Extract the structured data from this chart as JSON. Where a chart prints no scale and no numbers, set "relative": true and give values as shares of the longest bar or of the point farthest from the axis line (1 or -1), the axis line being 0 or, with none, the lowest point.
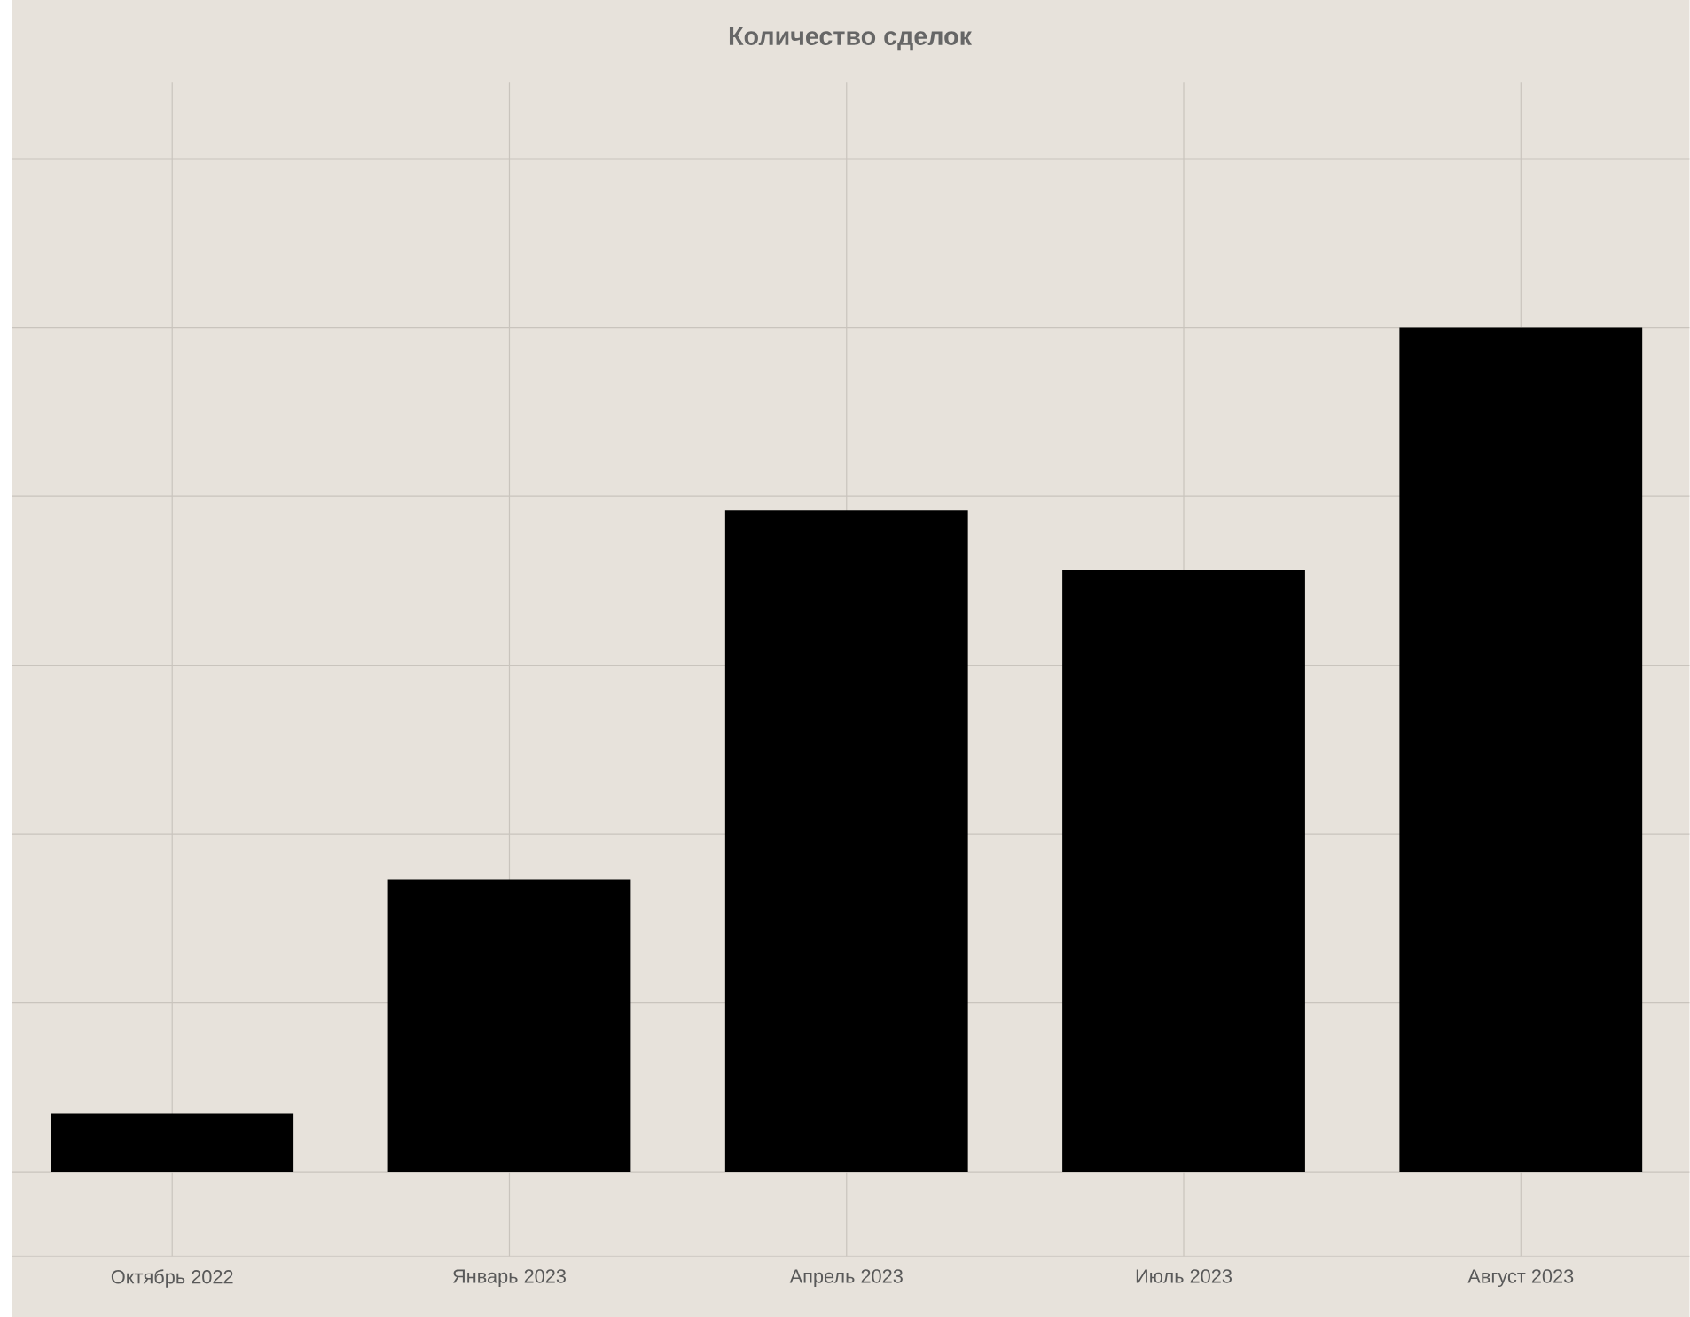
{
  "chart_data": {
    "type": "bar",
    "title": "Количество сделок",
    "categories": [
      "Октябрь 2022",
      "Январь 2023",
      "Апрель 2023",
      "Июль 2023",
      "Август 2023"
    ],
    "values": [
      0.069,
      0.346,
      0.783,
      0.713,
      1.0
    ],
    "color": "#000000",
    "relative": true,
    "grid": true
  }
}
